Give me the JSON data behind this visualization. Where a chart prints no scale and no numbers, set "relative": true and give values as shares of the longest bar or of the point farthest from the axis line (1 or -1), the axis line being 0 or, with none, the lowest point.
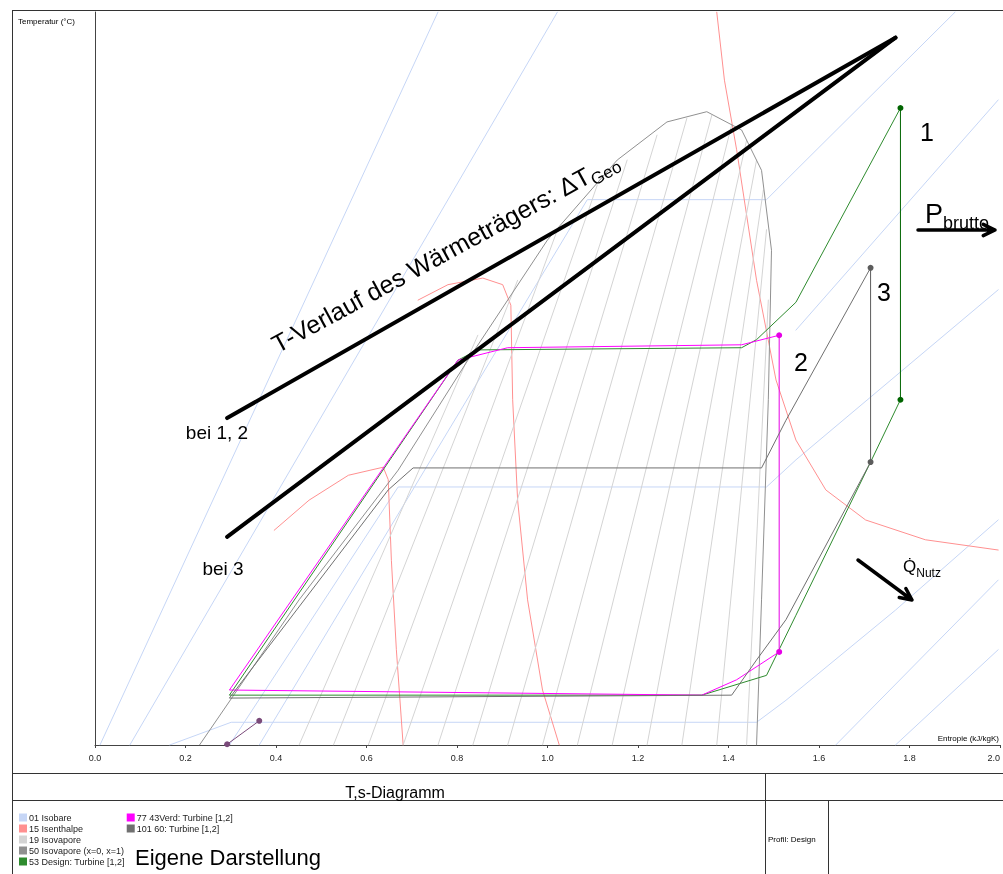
{
  "chart_data": {
    "type": "line",
    "relative": true,
    "title": "T,s-Diagramm",
    "xlabel": "Entropie (kJ/kgK)",
    "ylabel": "Temperatur (°C)",
    "xlim": [
      0,
      2
    ],
    "xticks": [
      {
        "value": 0,
        "label": "0.0"
      },
      0.2,
      0.4,
      0.6,
      0.8,
      {
        "value": 1,
        "label": "1.0"
      },
      1.2,
      1.4,
      1.6,
      1.8,
      {
        "value": 2,
        "label": "2.0"
      }
    ],
    "legend": "bottom left",
    "marker": "none",
    "series": [
      {
        "color": "#000000",
        "x": [
          0.292,
          1.769
        ],
        "values": [
          0.446,
          0.965
        ]
      },
      {
        "color": "#000000",
        "x": [
          0.292,
          1.769
        ],
        "values": [
          0.284,
          0.965
        ]
      },
      {
        "name": "01 Isobare",
        "color": "#c6d6f6",
        "x": [
          0.165,
          0.301,
          1.462,
          1.527,
          1.769,
          1.996
        ],
        "values": [
          0,
          0.031,
          0.031,
          0.061,
          0.184,
          0.307
        ]
      },
      {
        "color": "#c6d6f6",
        "x": [
          0.297,
          0.67,
          1.484,
          1.549,
          1.996
        ],
        "values": [
          0,
          0.352,
          0.352,
          0.389,
          0.621
        ]
      },
      {
        "color": "#c6d6f6",
        "x": [
          0.363,
          1.088,
          1.484,
          1.549,
          1.901
        ],
        "values": [
          0,
          0.744,
          0.744,
          0.784,
          1
        ]
      },
      {
        "color": "#c6d6f6",
        "x": [
          0.077,
          1.022
        ],
        "values": [
          0,
          1
        ]
      },
      {
        "color": "#c6d6f6",
        "x": [
          0.011,
          0.758
        ],
        "values": [
          0,
          1
        ]
      },
      {
        "color": "#c6d6f6",
        "x": [
          1.637,
          1.996
        ],
        "values": [
          0,
          0.225
        ]
      },
      {
        "color": "#c6d6f6",
        "x": [
          1.769,
          1.996
        ],
        "values": [
          0,
          0.13
        ]
      },
      {
        "color": "#c6d6f6",
        "x": [
          1.549,
          1.996
        ],
        "values": [
          0.566,
          0.88
        ]
      },
      {
        "name": "15 Isenthalpe",
        "color": "#ff9090",
        "x": [
          1.374,
          1.391,
          1.418,
          1.462,
          1.505,
          1.549,
          1.615,
          1.703,
          1.835,
          1.996
        ],
        "values": [
          1,
          0.907,
          0.812,
          0.634,
          0.498,
          0.416,
          0.348,
          0.307,
          0.28,
          0.266
        ]
      },
      {
        "color": "#ff9090",
        "x": [
          0.714,
          0.78,
          0.857,
          0.901,
          0.919,
          0.923,
          0.934,
          0.956,
          0.989,
          1.026
        ],
        "values": [
          0.607,
          0.628,
          0.637,
          0.628,
          0.6,
          0.471,
          0.334,
          0.198,
          0.075,
          0
        ]
      },
      {
        "color": "#ff9090",
        "x": [
          0.396,
          0.473,
          0.56,
          0.637,
          0.648,
          0.655,
          0.666,
          0.681
        ],
        "values": [
          0.293,
          0.334,
          0.368,
          0.379,
          0.362,
          0.252,
          0.13,
          0
        ]
      },
      {
        "name": "19 Isovapore",
        "color": "#d4d4d4",
        "x": [
          0.451,
          0.846
        ],
        "values": [
          0,
          0.559
        ]
      },
      {
        "color": "#d4d4d4",
        "x": [
          0.527,
          0.934
        ],
        "values": [
          0,
          0.634
        ]
      },
      {
        "color": "#d4d4d4",
        "x": [
          0.604,
          1.022
        ],
        "values": [
          0,
          0.703
        ]
      },
      {
        "color": "#d4d4d4",
        "x": [
          0.681,
          1.11
        ],
        "values": [
          0,
          0.764
        ]
      },
      {
        "color": "#d4d4d4",
        "x": [
          0.758,
          1.176
        ],
        "values": [
          0,
          0.798
        ]
      },
      {
        "color": "#d4d4d4",
        "x": [
          0.835,
          1.242
        ],
        "values": [
          0,
          0.832
        ]
      },
      {
        "color": "#d4d4d4",
        "x": [
          0.912,
          1.308
        ],
        "values": [
          0,
          0.855
        ]
      },
      {
        "color": "#d4d4d4",
        "x": [
          0.989,
          1.363
        ],
        "values": [
          0,
          0.859
        ]
      },
      {
        "color": "#d4d4d4",
        "x": [
          1.066,
          1.407
        ],
        "values": [
          0,
          0.846
        ]
      },
      {
        "color": "#d4d4d4",
        "x": [
          1.143,
          1.44
        ],
        "values": [
          0,
          0.825
        ]
      },
      {
        "color": "#d4d4d4",
        "x": [
          1.22,
          1.462
        ],
        "values": [
          0,
          0.798
        ]
      },
      {
        "color": "#d4d4d4",
        "x": [
          1.297,
          1.477
        ],
        "values": [
          0,
          0.757
        ]
      },
      {
        "color": "#d4d4d4",
        "x": [
          1.374,
          1.484
        ],
        "values": [
          0,
          0.703
        ]
      },
      {
        "color": "#d4d4d4",
        "x": [
          1.44,
          1.488
        ],
        "values": [
          0,
          0.607
        ]
      },
      {
        "name": "50 Isovapore (x=0, x=1)",
        "color": "#909090",
        "x": [
          0.231,
          0.451,
          0.67,
          0.824,
          1.0,
          1.154,
          1.264,
          1.352,
          1.429,
          1.473,
          1.495,
          1.488,
          1.473,
          1.462
        ],
        "values": [
          0,
          0.198,
          0.375,
          0.525,
          0.689,
          0.798,
          0.85,
          0.864,
          0.839,
          0.784,
          0.675,
          0.471,
          0.198,
          0
        ]
      },
      {
        "name": "53 Design: Turbine [1,2]",
        "color": "#2e8b2e",
        "x": [
          1.78,
          1.714,
          1.549,
          1.484,
          1.341,
          0.297,
          0.802,
          0.846,
          1.429,
          1.462,
          1.549,
          1.78
        ],
        "values": [
          0.471,
          0.386,
          0.177,
          0.095,
          0.068,
          0.068,
          0.525,
          0.539,
          0.542,
          0.553,
          0.604,
          0.869
        ]
      },
      {
        "color": "#006400",
        "marker": "circle",
        "x": [
          1.78,
          1.78
        ],
        "values": [
          0.869,
          0.471
        ]
      },
      {
        "name": "77 43Verd: Turbine [1,2]",
        "color": "#ff00ff",
        "x": [
          1.512,
          1.418,
          1.341,
          0.297,
          0.802,
          0.912,
          1.429,
          1.512
        ],
        "values": [
          0.127,
          0.089,
          0.068,
          0.075,
          0.525,
          0.542,
          0.546,
          0.559
        ]
      },
      {
        "color": "#e600e6",
        "marker": "circle",
        "x": [
          1.512,
          1.512
        ],
        "values": [
          0.559,
          0.127
        ]
      },
      {
        "name": "101 60: Turbine [1,2]",
        "color": "#707070",
        "x": [
          1.714,
          1.527,
          1.462,
          1.407,
          0.297,
          0.648,
          0.703,
          1.473,
          1.527,
          1.714
        ],
        "values": [
          0.386,
          0.171,
          0.116,
          0.068,
          0.064,
          0.348,
          0.378,
          0.378,
          0.443,
          0.651
        ]
      },
      {
        "color": "#5c5c5c",
        "marker": "circle",
        "x": [
          1.714,
          1.714
        ],
        "values": [
          0.651,
          0.386
        ]
      },
      {
        "color": "#7a4a7a",
        "marker": "circle",
        "x": [
          0.292,
          0.363
        ],
        "values": [
          0.001,
          0.033
        ]
      }
    ],
    "annotations": [
      "T-Verlauf des Wärmeträgers: ΔT$_{Geo}$",
      "bei 1, 2",
      "bei 3",
      "1",
      "2",
      "3",
      "P$_{brutto}$",
      "Q̇$_{Nutz}$",
      "Eigene Darstellung",
      "Profil: Design"
    ]
  }
}
